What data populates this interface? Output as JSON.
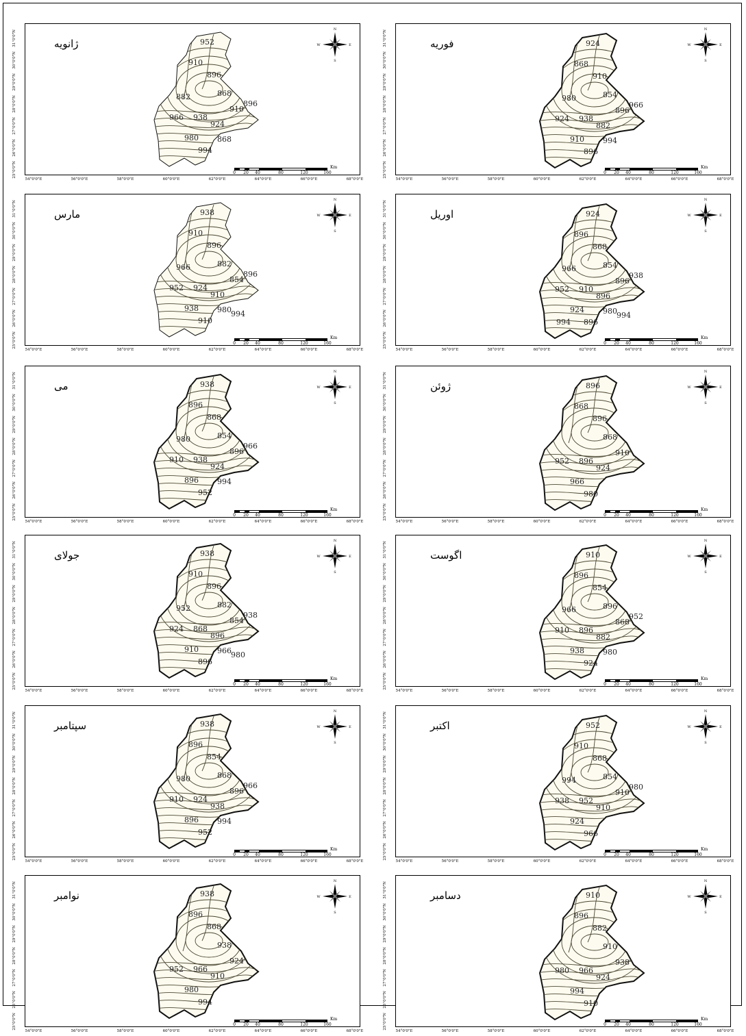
{
  "months": [
    {
      "name": "ژانویه",
      "labels": [
        "952",
        "910",
        "896",
        "868",
        "910",
        "924",
        "938",
        "966",
        "980",
        "994",
        "896",
        "882",
        "868"
      ]
    },
    {
      "name": "فوریه",
      "labels": [
        "924",
        "868",
        "910",
        "854",
        "896",
        "882",
        "938",
        "924",
        "910",
        "896",
        "966",
        "980",
        "994"
      ]
    },
    {
      "name": "مارس",
      "labels": [
        "938",
        "910",
        "896",
        "882",
        "854",
        "910",
        "924",
        "952",
        "938",
        "910",
        "896",
        "966",
        "980",
        "994"
      ]
    },
    {
      "name": "اوریل",
      "labels": [
        "924",
        "896",
        "868",
        "854",
        "896",
        "896",
        "910",
        "952",
        "924",
        "896",
        "938",
        "966",
        "980",
        "994",
        "994"
      ]
    },
    {
      "name": "می",
      "labels": [
        "938",
        "896",
        "868",
        "854",
        "896",
        "924",
        "938",
        "910",
        "896",
        "952",
        "966",
        "980",
        "994"
      ]
    },
    {
      "name": "ژوئن",
      "labels": [
        "896",
        "868",
        "896",
        "868",
        "910",
        "924",
        "896",
        "952",
        "966",
        "980"
      ]
    },
    {
      "name": "جولای",
      "labels": [
        "938",
        "910",
        "896",
        "882",
        "854",
        "896",
        "868",
        "924",
        "910",
        "896",
        "938",
        "952",
        "966",
        "980"
      ]
    },
    {
      "name": "اگوست",
      "labels": [
        "910",
        "896",
        "854",
        "896",
        "868",
        "882",
        "896",
        "910",
        "938",
        "924",
        "952",
        "966",
        "980"
      ]
    },
    {
      "name": "سپتامبر",
      "labels": [
        "938",
        "896",
        "854",
        "868",
        "896",
        "938",
        "924",
        "910",
        "896",
        "952",
        "966",
        "980",
        "994"
      ]
    },
    {
      "name": "اکتبر",
      "labels": [
        "952",
        "910",
        "868",
        "854",
        "910",
        "910",
        "952",
        "938",
        "924",
        "966",
        "980",
        "994"
      ]
    },
    {
      "name": "نوامبر",
      "labels": [
        "938",
        "896",
        "868",
        "938",
        "924",
        "910",
        "966",
        "952",
        "980",
        "994"
      ]
    },
    {
      "name": "دسامبر",
      "labels": [
        "910",
        "896",
        "882",
        "910",
        "938",
        "924",
        "966",
        "980",
        "994",
        "910"
      ]
    }
  ],
  "lat_labels": [
    "25°0'0\"N",
    "26°0'0\"N",
    "27°0'0\"N",
    "28°0'0\"N",
    "29°0'0\"N",
    "30°0'0\"N",
    "31°0'0\"N"
  ],
  "lon_labels": [
    "54°0'0\"E",
    "56°0'0\"E",
    "58°0'0\"E",
    "60°0'0\"E",
    "62°0'0\"E",
    "64°0'0\"E",
    "66°0'0\"E",
    "68°0'0\"E"
  ],
  "scale": {
    "ticks": [
      "0",
      "20",
      "40",
      "80",
      "120",
      "160"
    ],
    "unit": "Km"
  },
  "compass": [
    "N",
    "E",
    "S",
    "W"
  ],
  "colors": {
    "fill": "#fdfbef",
    "line": "#4a4632",
    "boundary": "#111111"
  }
}
